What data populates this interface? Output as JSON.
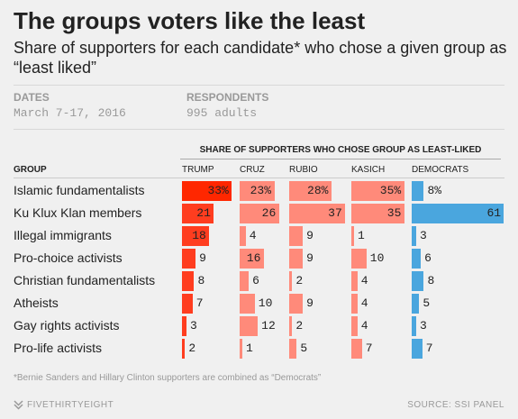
{
  "title": "The groups voters like the least",
  "subtitle": "Share of supporters for each candidate* who chose a given group as “least liked”",
  "meta": {
    "dates_label": "DATES",
    "dates_value": "March 7-17, 2016",
    "respondents_label": "RESPONDENTS",
    "respondents_value": "995 adults"
  },
  "table_title": "SHARE OF SUPPORTERS WHO CHOSE GROUP AS LEAST-LIKED",
  "group_header": "GROUP",
  "footnote": "*Bernie Sanders and Hillary Clinton supporters are combined as “Democrats”",
  "logo_text": "FIVETHIRTYEIGHT",
  "source": "SOURCE: SSI PANEL",
  "colors": {
    "trump_1": "#ff2700",
    "trump_2": "#ff3a1a",
    "trump_other": "#ff3d1f",
    "gop_light": "#ff8a7a",
    "gop_mid": "#ff6f5e",
    "dem": "#4aa6de",
    "dem_dark": "#2b89cc"
  },
  "chart_data": {
    "type": "table",
    "title": "The groups voters like the least",
    "columns": [
      "TRUMP",
      "CRUZ",
      "RUBIO",
      "KASICH",
      "DEMOCRATS"
    ],
    "rows": [
      {
        "group": "Islamic fundamentalists",
        "values": [
          33,
          23,
          28,
          35,
          8
        ],
        "labels": [
          "33%",
          "23%",
          "28%",
          "35%",
          "8%"
        ]
      },
      {
        "group": "Ku Klux Klan members",
        "values": [
          21,
          26,
          37,
          35,
          61
        ],
        "labels": [
          "21",
          "26",
          "37",
          "35",
          "61"
        ]
      },
      {
        "group": "Illegal immigrants",
        "values": [
          18,
          4,
          9,
          1,
          3
        ],
        "labels": [
          "18",
          "4",
          "9",
          "1",
          "3"
        ]
      },
      {
        "group": "Pro-choice activists",
        "values": [
          9,
          16,
          9,
          10,
          6
        ],
        "labels": [
          "9",
          "16",
          "9",
          "10",
          "6"
        ]
      },
      {
        "group": "Christian fundamentalists",
        "values": [
          8,
          6,
          2,
          4,
          8
        ],
        "labels": [
          "8",
          "6",
          "2",
          "4",
          "8"
        ]
      },
      {
        "group": "Atheists",
        "values": [
          7,
          10,
          9,
          4,
          5
        ],
        "labels": [
          "7",
          "10",
          "9",
          "4",
          "5"
        ]
      },
      {
        "group": "Gay rights activists",
        "values": [
          3,
          12,
          2,
          4,
          3
        ],
        "labels": [
          "3",
          "12",
          "2",
          "4",
          "3"
        ]
      },
      {
        "group": "Pro-life activists",
        "values": [
          2,
          1,
          5,
          7,
          7
        ],
        "labels": [
          "2",
          "1",
          "5",
          "7",
          "7"
        ]
      }
    ]
  }
}
